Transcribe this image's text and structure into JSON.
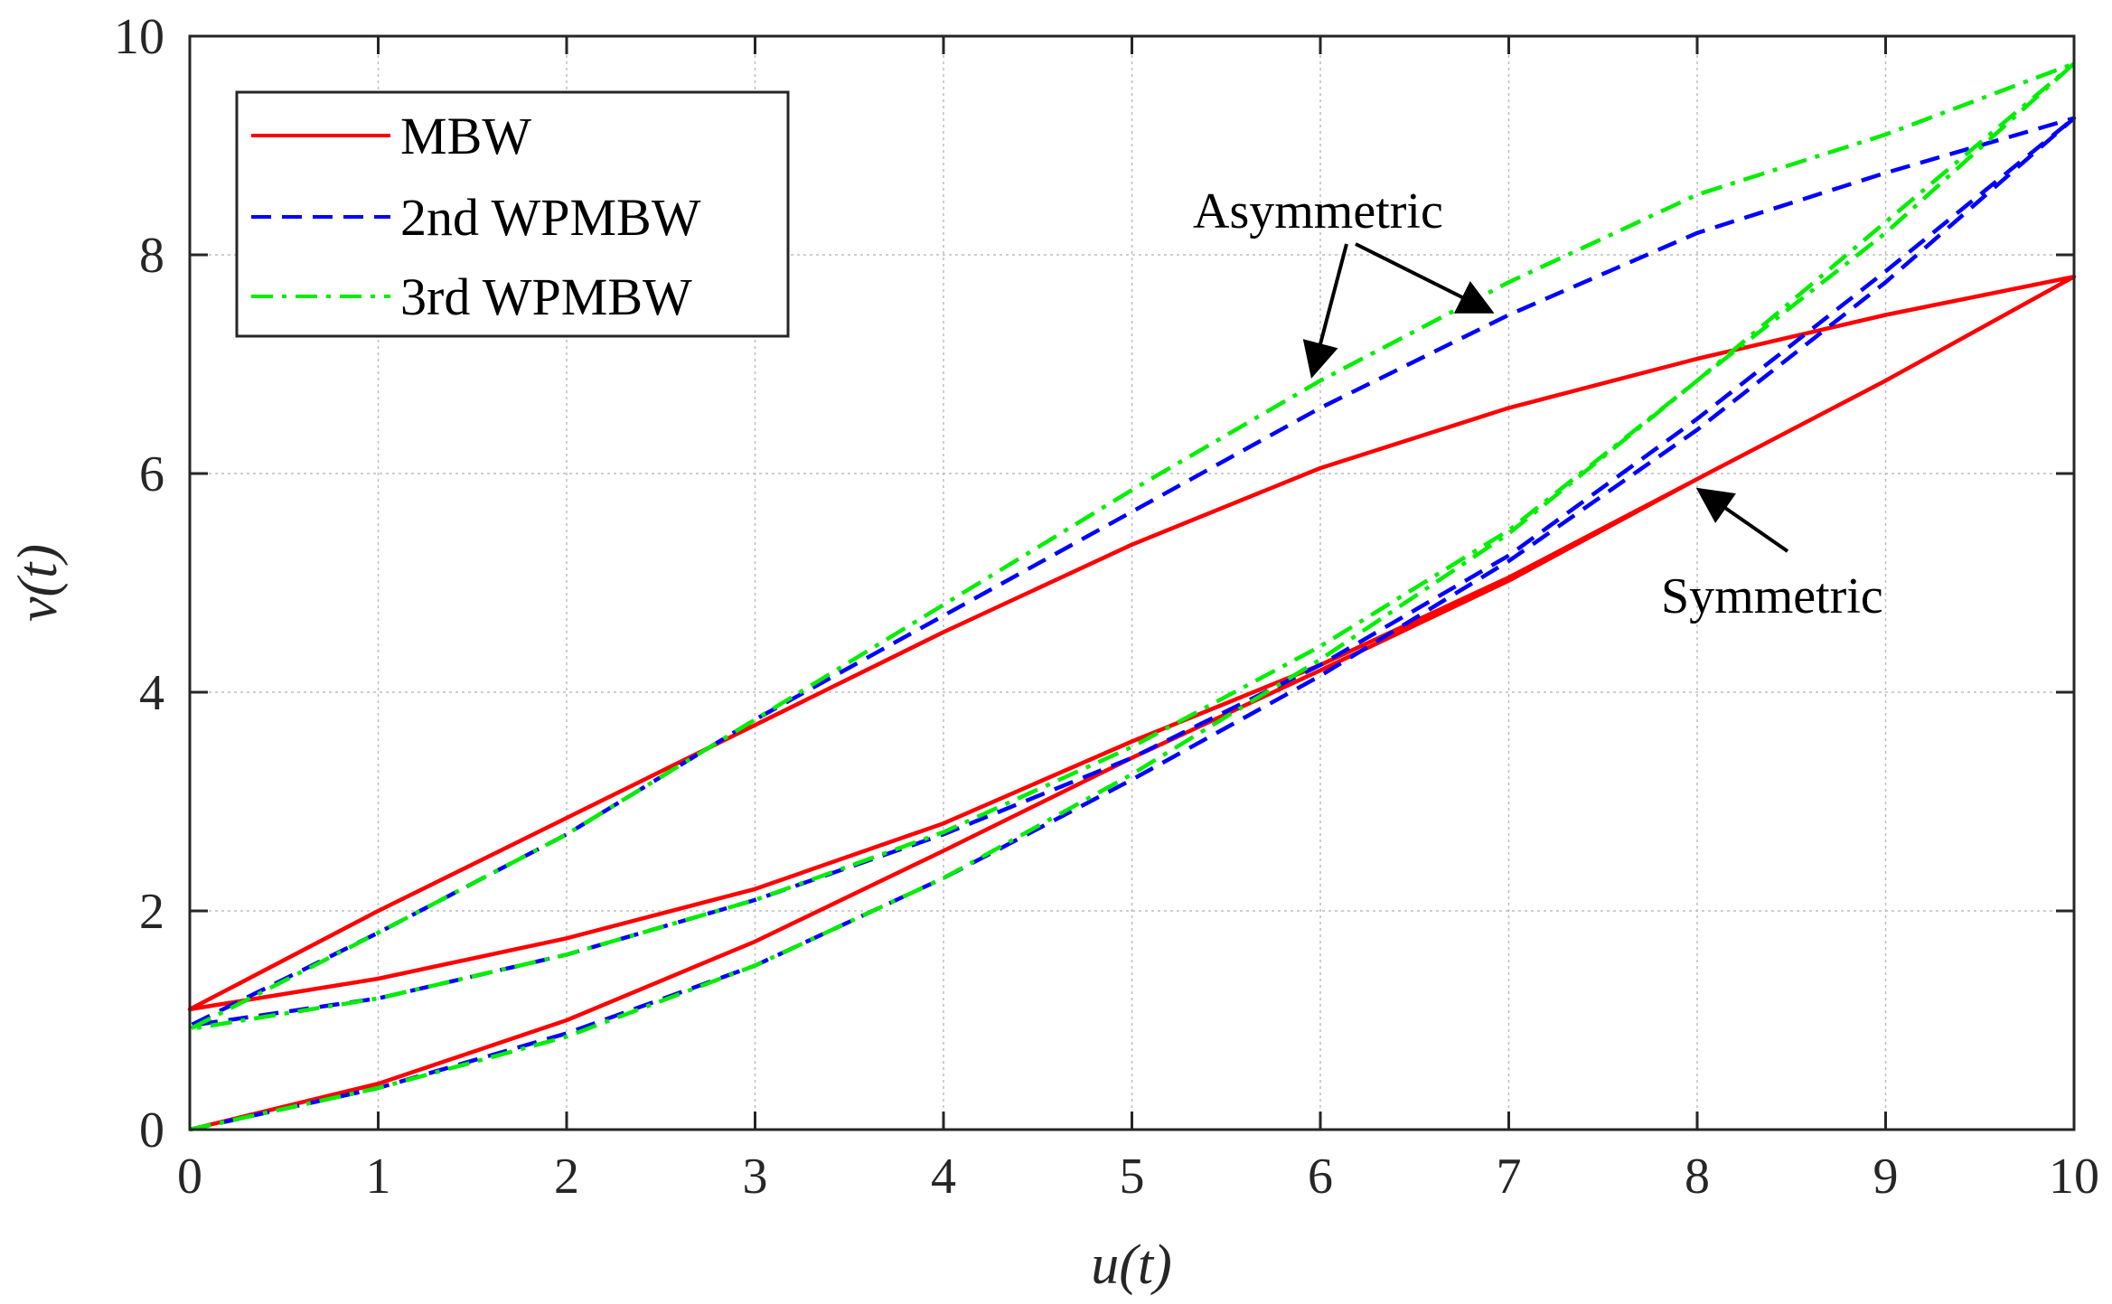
{
  "chart_data": {
    "type": "line",
    "title": "",
    "xlabel": "u(t)",
    "ylabel": "v(t)",
    "xlim": [
      0,
      10
    ],
    "ylim": [
      0,
      10
    ],
    "xticks": [
      0,
      1,
      2,
      3,
      4,
      5,
      6,
      7,
      8,
      9,
      10
    ],
    "yticks": [
      0,
      2,
      4,
      6,
      8,
      10
    ],
    "grid": true,
    "legend_position": "top-left",
    "series": [
      {
        "name": "MBW",
        "color": "#ff0000",
        "style": "solid",
        "x": [
          0,
          1,
          2,
          3,
          4,
          5,
          6,
          7,
          8,
          9,
          10,
          9,
          8,
          7,
          6,
          5,
          4,
          3,
          2,
          1,
          0,
          1,
          2,
          3,
          4,
          5,
          6,
          7,
          8,
          9,
          10
        ],
        "y": [
          0,
          0.42,
          1.0,
          1.72,
          2.55,
          3.4,
          4.2,
          5.02,
          5.95,
          6.85,
          7.8,
          7.45,
          7.05,
          6.6,
          6.05,
          5.35,
          4.55,
          3.7,
          2.85,
          2.0,
          1.1,
          1.38,
          1.75,
          2.2,
          2.8,
          3.55,
          4.25,
          5.05,
          5.95,
          6.85,
          7.8
        ]
      },
      {
        "name": "2nd WPMBW",
        "color": "#0000ff",
        "style": "dashed",
        "x": [
          0,
          1,
          2,
          3,
          4,
          5,
          6,
          7,
          8,
          9,
          10,
          9,
          8,
          7,
          6,
          5,
          4,
          3,
          2,
          1,
          0,
          1,
          2,
          3,
          4,
          5,
          6,
          7,
          8,
          9,
          10
        ],
        "y": [
          0,
          0.38,
          0.88,
          1.5,
          2.3,
          3.2,
          4.15,
          5.2,
          6.4,
          7.75,
          9.25,
          8.75,
          8.2,
          7.45,
          6.6,
          5.65,
          4.7,
          3.75,
          2.7,
          1.8,
          0.95,
          1.2,
          1.6,
          2.1,
          2.7,
          3.4,
          4.25,
          5.25,
          6.5,
          7.85,
          9.25
        ]
      },
      {
        "name": "3rd WPMBW",
        "color": "#00ee00",
        "style": "dashdot",
        "x": [
          0,
          1,
          2,
          3,
          4,
          5,
          6,
          7,
          8,
          9,
          10,
          9,
          8,
          7,
          6,
          5,
          4,
          3,
          2,
          1,
          0,
          1,
          2,
          3,
          4,
          5,
          6,
          7,
          8,
          9,
          10
        ],
        "y": [
          0,
          0.38,
          0.85,
          1.5,
          2.3,
          3.25,
          4.3,
          5.45,
          6.85,
          8.2,
          9.75,
          9.1,
          8.55,
          7.75,
          6.85,
          5.85,
          4.8,
          3.75,
          2.7,
          1.8,
          0.92,
          1.2,
          1.6,
          2.1,
          2.72,
          3.5,
          4.42,
          5.48,
          6.85,
          8.3,
          9.75
        ]
      }
    ],
    "annotations": [
      {
        "text": "Asymmetric",
        "arrow_targets": [
          [
            6.0,
            6.9
          ],
          [
            7.0,
            7.5
          ]
        ]
      },
      {
        "text": "Symmetric",
        "arrow_targets": [
          [
            8.0,
            5.9
          ]
        ]
      }
    ]
  }
}
